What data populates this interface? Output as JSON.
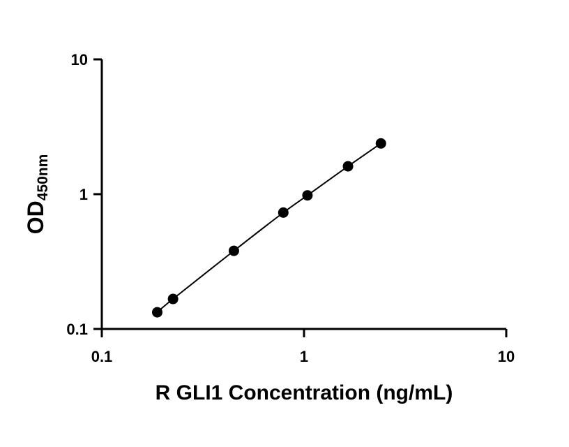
{
  "chart_data": {
    "type": "scatter",
    "title": "",
    "xlabel": "R GLI1 Concentration (ng/mL)",
    "ylabel": {
      "main": "OD",
      "subscript": "450nm"
    },
    "x_scale": "log",
    "y_scale": "log",
    "xlim": [
      0.1,
      10
    ],
    "ylim": [
      0.1,
      10
    ],
    "x_ticks": [
      "0.1",
      "1",
      "10"
    ],
    "y_ticks": [
      "0.1",
      "1",
      "10"
    ],
    "grid": false,
    "legend": "none",
    "colors": {
      "axis": "#000000",
      "points": "#000000",
      "curve": "#000000"
    },
    "series": [
      {
        "x": [
          0.188,
          0.225,
          0.45,
          0.79,
          1.04,
          1.65,
          2.4
        ],
        "y": [
          0.133,
          0.167,
          0.38,
          0.73,
          0.98,
          1.61,
          2.38
        ]
      }
    ],
    "fit_curve": true
  }
}
